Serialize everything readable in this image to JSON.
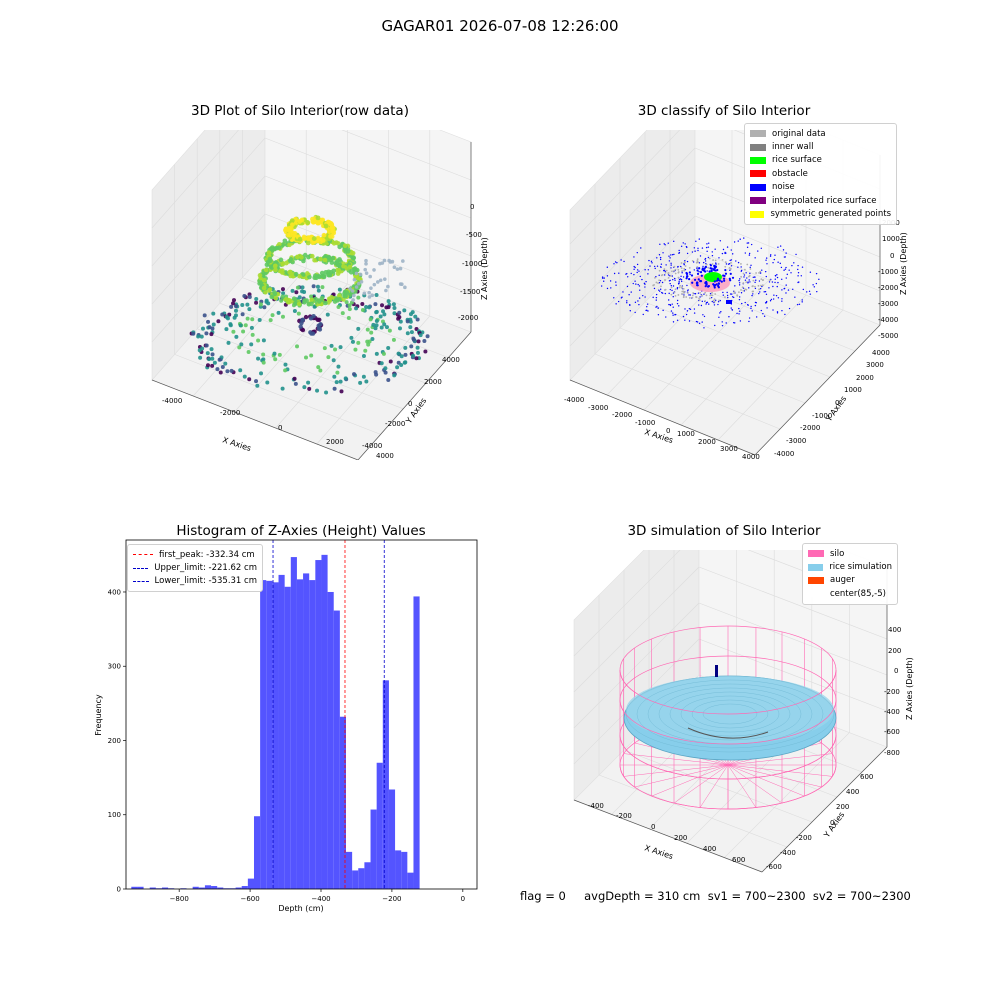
{
  "suptitle": "GAGAR01 2026-07-08 12:26:00",
  "footer": "flag = 0     avgDepth = 310 cm  sv1 = 700~2300  sv2 = 700~2300",
  "colors": {
    "hist": "#4b4bff",
    "peak": "#ff0000",
    "limit": "#0000cc",
    "silo": "#ff69b4",
    "rice": "#87ceeb",
    "auger": "#ff4500"
  },
  "chart_data": [
    {
      "type": "scatter",
      "subtype": "3d",
      "title": "3D Plot of Silo Interior(row data)",
      "xlabel": "X Axies",
      "ylabel": "Y Axies",
      "zlabel": "Z Axies (Depth)",
      "xticks": [
        "-4000",
        "-2000",
        "0",
        "2000",
        "4000"
      ],
      "yticks": [
        "-4000",
        "-2000",
        "0",
        "2000",
        "4000"
      ],
      "zticks": [
        "0",
        "-500",
        "-1000",
        "-1500",
        "-2000"
      ],
      "colormap": "viridis"
    },
    {
      "type": "scatter",
      "subtype": "3d",
      "title": "3D classify of Silo Interior",
      "xlabel": "X Axies",
      "ylabel": "Y Axies",
      "zlabel": "Z Axies (Depth)",
      "xticks": [
        "-4000",
        "-3000",
        "-2000",
        "-1000",
        "0",
        "1000",
        "2000",
        "3000",
        "4000"
      ],
      "yticks": [
        "-4000",
        "-3000",
        "-2000",
        "-1000",
        "0",
        "1000",
        "2000",
        "3000",
        "4000"
      ],
      "zticks": [
        "2000",
        "1000",
        "0",
        "-1000",
        "-2000",
        "-3000",
        "-4000",
        "-5000"
      ],
      "legend_position": "top-right",
      "legend": [
        {
          "label": "original data",
          "color": "#b0b0b0"
        },
        {
          "label": "inner wall",
          "color": "#808080"
        },
        {
          "label": "rice surface",
          "color": "#00ff00"
        },
        {
          "label": "obstacle",
          "color": "#ff0000"
        },
        {
          "label": "noise",
          "color": "#0000ff"
        },
        {
          "label": "interpolated rice surface",
          "color": "#800080"
        },
        {
          "label": "symmetric generated points",
          "color": "#ffff00"
        }
      ]
    },
    {
      "type": "bar",
      "subtype": "histogram",
      "title": "Histogram of Z-Axies (Height) Values",
      "xlabel": "Depth (cm)",
      "ylabel": "Frequency",
      "xlim": [
        -950,
        40
      ],
      "ylim": [
        0,
        470
      ],
      "xticks": [
        -800,
        -600,
        -400,
        -200,
        0
      ],
      "yticks": [
        0,
        100,
        200,
        300,
        400
      ],
      "bin_start": -935,
      "bin_width": 17.3,
      "values": [
        3,
        3,
        0,
        2,
        1,
        2,
        1,
        0,
        1,
        0,
        3,
        2,
        5,
        4,
        2,
        1,
        1,
        2,
        4,
        14,
        98,
        416,
        415,
        413,
        423,
        407,
        447,
        417,
        425,
        416,
        443,
        450,
        400,
        375,
        232,
        50,
        25,
        28,
        36,
        107,
        170,
        281,
        134,
        52,
        50,
        22,
        394
      ],
      "legend_position": "top-left",
      "vlines": [
        {
          "label": "first_peak: -332.34 cm",
          "x": -332.34,
          "color": "#ff0000"
        },
        {
          "label": "Upper_limit: -221.62 cm",
          "x": -221.62,
          "color": "#0000cc"
        },
        {
          "label": "Lower_limit: -535.31 cm",
          "x": -535.31,
          "color": "#0000cc"
        }
      ]
    },
    {
      "type": "surface",
      "subtype": "3d",
      "title": "3D simulation of Silo Interior",
      "xlabel": "X Axies",
      "ylabel": "Y Axies",
      "zlabel": "Z Axies (Depth)",
      "xticks": [
        "-400",
        "-200",
        "0",
        "200",
        "400",
        "600"
      ],
      "yticks": [
        "-600",
        "-400",
        "-200",
        "0",
        "200",
        "400",
        "600"
      ],
      "zticks": [
        "400",
        "200",
        "0",
        "-200",
        "-400",
        "-600",
        "-800"
      ],
      "legend_position": "top-right",
      "legend": [
        {
          "label": "silo",
          "color": "#ff69b4"
        },
        {
          "label": "rice simulation",
          "color": "#87ceeb"
        },
        {
          "label": "auger",
          "color": "#ff4500"
        },
        {
          "label": "center(85,-5)",
          "color": "#ffffff"
        }
      ]
    }
  ]
}
